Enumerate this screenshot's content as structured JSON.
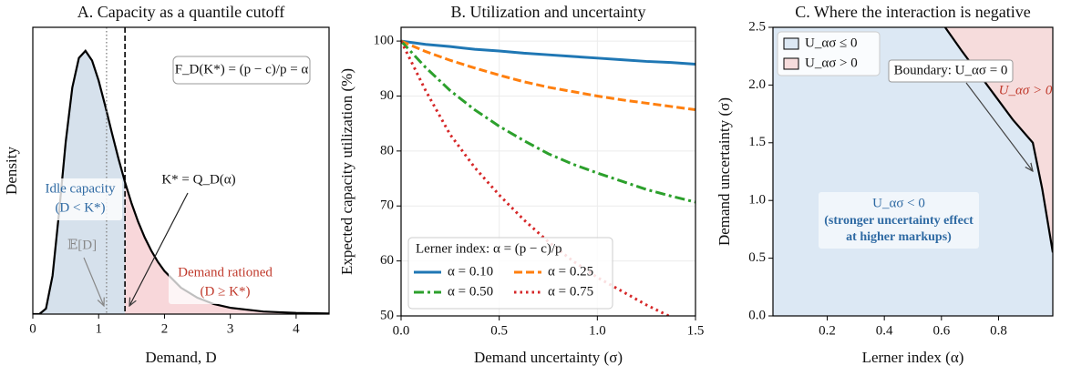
{
  "chart_data": [
    {
      "type": "area",
      "title": "A. Capacity as a quantile cutoff",
      "xlabel": "Demand, D",
      "ylabel": "Density",
      "x": [
        0,
        0.1,
        0.2,
        0.3,
        0.4,
        0.5,
        0.6,
        0.7,
        0.8,
        0.9,
        1.0,
        1.1,
        1.2,
        1.3,
        1.4,
        1.5,
        1.6,
        1.7,
        1.8,
        1.9,
        2.0,
        2.25,
        2.5,
        2.75,
        3.0,
        3.5,
        4.0,
        4.5
      ],
      "values": [
        0,
        0.0,
        0.019,
        0.134,
        0.357,
        0.601,
        0.79,
        0.893,
        0.918,
        0.884,
        0.814,
        0.726,
        0.633,
        0.543,
        0.46,
        0.386,
        0.322,
        0.267,
        0.221,
        0.182,
        0.15,
        0.092,
        0.057,
        0.035,
        0.022,
        0.009,
        0.004,
        0.002
      ],
      "color": "#000000",
      "fill_below": "#d6e1ec",
      "fill_above": "#f8d7da",
      "mean": 1.12,
      "cutoff": 1.4,
      "xlim": [
        0,
        4.5
      ],
      "ylim": [
        0,
        1.0
      ],
      "xticks": [
        0,
        1,
        2,
        3,
        4
      ],
      "annotations": {
        "formula": "F_D(K*) = (p − c)/p = α",
        "idle": [
          "Idle capacity",
          "(D < K*)"
        ],
        "cutoff_label": "K* = Q_D(α)",
        "mean_label": "𝔼[D]",
        "rationed": [
          "Demand rationed",
          "(D ≥ K*)"
        ]
      }
    },
    {
      "type": "line",
      "title": "B. Utilization and uncertainty",
      "xlabel": "Demand uncertainty (σ)",
      "ylabel": "Expected capacity utilization (%)",
      "x": [
        0,
        0.125,
        0.25,
        0.375,
        0.5,
        0.625,
        0.75,
        0.875,
        1.0,
        1.125,
        1.25,
        1.375,
        1.5
      ],
      "series": [
        {
          "name": "α = 0.10",
          "color": "#1f77b4",
          "dash": "solid",
          "values": [
            100,
            99.4,
            99.0,
            98.5,
            98.2,
            97.8,
            97.5,
            97.2,
            96.9,
            96.6,
            96.3,
            96.1,
            95.8
          ]
        },
        {
          "name": "α = 0.25",
          "color": "#ff7f0e",
          "dash": "dashed",
          "values": [
            100,
            98.1,
            96.5,
            95.1,
            93.8,
            92.6,
            91.6,
            90.8,
            90.0,
            89.3,
            88.7,
            88.1,
            87.5
          ]
        },
        {
          "name": "α = 0.50",
          "color": "#2ca02c",
          "dash": "dashdot",
          "values": [
            100,
            95.2,
            91.0,
            87.5,
            84.5,
            81.9,
            79.5,
            77.6,
            76.0,
            74.5,
            73.0,
            71.8,
            70.7
          ]
        },
        {
          "name": "α = 0.75",
          "color": "#d62728",
          "dash": "dotted",
          "values": [
            100,
            91.0,
            83.0,
            77.0,
            72.0,
            67.5,
            63.5,
            60.0,
            57.0,
            54.5,
            52.0,
            49.8,
            47.8
          ]
        }
      ],
      "legend_title": "Lerner index: α = (p − c)/p",
      "legend": "lower left",
      "grid": true,
      "xlim": [
        0,
        1.5
      ],
      "ylim": [
        50,
        102.5
      ],
      "xticks": [
        {
          "value": 0,
          "label": "0.0"
        },
        0.5,
        {
          "value": 1,
          "label": "1.0"
        },
        1.5
      ],
      "yticks": [
        50,
        60,
        70,
        80,
        90,
        100
      ]
    },
    {
      "type": "region",
      "title": "C. Where the interaction is negative",
      "xlabel": "Lerner index (α)",
      "ylabel": "Demand uncertainty (σ)",
      "boundary_x": [
        0.613,
        0.67,
        0.73,
        0.79,
        0.85,
        0.92,
        0.953,
        0.99
      ],
      "boundary_y": [
        2.5,
        2.3,
        2.1,
        1.9,
        1.7,
        1.5,
        1.1,
        0.55
      ],
      "regions": [
        {
          "name": "U_ασ ≤ 0",
          "color": "#dce8f4"
        },
        {
          "name": "U_ασ > 0",
          "color": "#f6dcdc"
        }
      ],
      "xlim": [
        0.01,
        0.99
      ],
      "ylim": [
        0,
        2.5
      ],
      "xticks": [
        0.2,
        0.4,
        0.6,
        0.8
      ],
      "yticks": [
        {
          "value": 0,
          "label": "0.0"
        },
        0.5,
        {
          "value": 1,
          "label": "1.0"
        },
        1.5,
        {
          "value": 2,
          "label": "2.0"
        },
        2.5
      ],
      "annotations": {
        "boundary": "Boundary: U_ασ = 0",
        "positive": "U_ασ > 0",
        "negative": "U_ασ < 0",
        "note": [
          "(stronger uncertainty effect",
          "at higher markups)"
        ]
      }
    }
  ]
}
